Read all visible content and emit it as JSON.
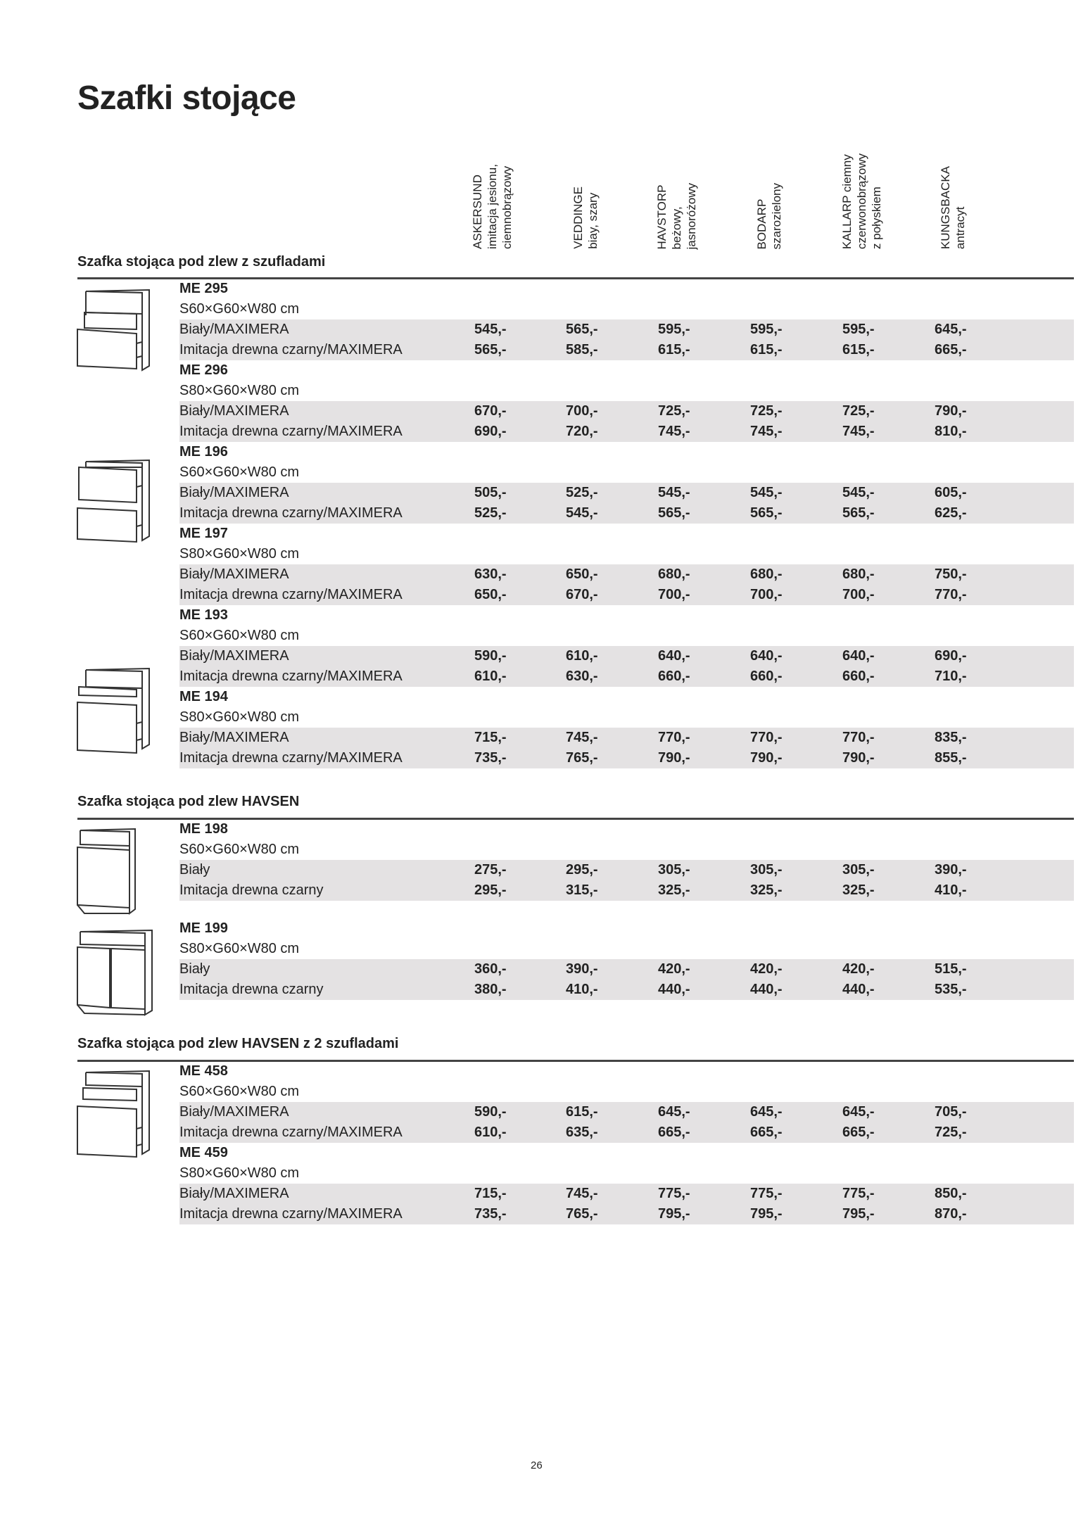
{
  "title": "Szafki stojące",
  "columns": [
    {
      "name": "ASKERSUND",
      "desc": "imitacja jesionu,\nciemnobrązowy"
    },
    {
      "name": "VEDDINGE",
      "desc": "biay, szary"
    },
    {
      "name": "HAVSTORP",
      "desc": "beżowy,\njasnoróżowy"
    },
    {
      "name": "BODARP",
      "desc": "szarozielony"
    },
    {
      "name": "KALLARP ciemny",
      "desc": "czerwonobrązowy\nz połyskiem"
    },
    {
      "name": "KUNGSBACKA",
      "desc": "antracyt"
    }
  ],
  "sections": [
    {
      "heading": "Szafka stojąca pod zlew z szufladami",
      "products": [
        {
          "code": "ME 295",
          "dims": "S60×G60×W80 cm",
          "rows": [
            {
              "label": "Biały/MAXIMERA",
              "prices": [
                "545,-",
                "565,-",
                "595,-",
                "595,-",
                "595,-",
                "645,-"
              ]
            },
            {
              "label": "Imitacja drewna czarny/MAXIMERA",
              "prices": [
                "565,-",
                "585,-",
                "615,-",
                "615,-",
                "615,-",
                "665,-"
              ]
            }
          ]
        },
        {
          "code": "ME 296",
          "dims": "S80×G60×W80 cm",
          "rows": [
            {
              "label": "Biały/MAXIMERA",
              "prices": [
                "670,-",
                "700,-",
                "725,-",
                "725,-",
                "725,-",
                "790,-"
              ]
            },
            {
              "label": "Imitacja drewna czarny/MAXIMERA",
              "prices": [
                "690,-",
                "720,-",
                "745,-",
                "745,-",
                "745,-",
                "810,-"
              ]
            }
          ]
        },
        {
          "code": "ME 196",
          "dims": "S60×G60×W80 cm",
          "rows": [
            {
              "label": "Biały/MAXIMERA",
              "prices": [
                "505,-",
                "525,-",
                "545,-",
                "545,-",
                "545,-",
                "605,-"
              ]
            },
            {
              "label": "Imitacja drewna czarny/MAXIMERA",
              "prices": [
                "525,-",
                "545,-",
                "565,-",
                "565,-",
                "565,-",
                "625,-"
              ]
            }
          ]
        },
        {
          "code": "ME 197",
          "dims": "S80×G60×W80 cm",
          "rows": [
            {
              "label": "Biały/MAXIMERA",
              "prices": [
                "630,-",
                "650,-",
                "680,-",
                "680,-",
                "680,-",
                "750,-"
              ]
            },
            {
              "label": "Imitacja drewna czarny/MAXIMERA",
              "prices": [
                "650,-",
                "670,-",
                "700,-",
                "700,-",
                "700,-",
                "770,-"
              ]
            }
          ]
        },
        {
          "code": "ME 193",
          "dims": "S60×G60×W80 cm",
          "rows": [
            {
              "label": "Biały/MAXIMERA",
              "prices": [
                "590,-",
                "610,-",
                "640,-",
                "640,-",
                "640,-",
                "690,-"
              ]
            },
            {
              "label": "Imitacja drewna czarny/MAXIMERA",
              "prices": [
                "610,-",
                "630,-",
                "660,-",
                "660,-",
                "660,-",
                "710,-"
              ]
            }
          ]
        },
        {
          "code": "ME 194",
          "dims": "S80×G60×W80 cm",
          "rows": [
            {
              "label": "Biały/MAXIMERA",
              "prices": [
                "715,-",
                "745,-",
                "770,-",
                "770,-",
                "770,-",
                "835,-"
              ]
            },
            {
              "label": "Imitacja drewna czarny/MAXIMERA",
              "prices": [
                "735,-",
                "765,-",
                "790,-",
                "790,-",
                "790,-",
                "855,-"
              ]
            }
          ]
        }
      ]
    },
    {
      "heading": "Szafka stojąca pod zlew HAVSEN",
      "products": [
        {
          "code": "ME 198",
          "dims": "S60×G60×W80 cm",
          "rows": [
            {
              "label": "Biały",
              "prices": [
                "275,-",
                "295,-",
                "305,-",
                "305,-",
                "305,-",
                "390,-"
              ]
            },
            {
              "label": "Imitacja drewna czarny",
              "prices": [
                "295,-",
                "315,-",
                "325,-",
                "325,-",
                "325,-",
                "410,-"
              ]
            }
          ]
        },
        {
          "code": "ME 199",
          "dims": "S80×G60×W80 cm",
          "rows": [
            {
              "label": "Biały",
              "prices": [
                "360,-",
                "390,-",
                "420,-",
                "420,-",
                "420,-",
                "515,-"
              ]
            },
            {
              "label": "Imitacja drewna czarny",
              "prices": [
                "380,-",
                "410,-",
                "440,-",
                "440,-",
                "440,-",
                "535,-"
              ]
            }
          ]
        }
      ]
    },
    {
      "heading": "Szafka stojąca pod zlew HAVSEN z 2 szufladami",
      "products": [
        {
          "code": "ME 458",
          "dims": "S60×G60×W80 cm",
          "rows": [
            {
              "label": "Biały/MAXIMERA",
              "prices": [
                "590,-",
                "615,-",
                "645,-",
                "645,-",
                "645,-",
                "705,-"
              ]
            },
            {
              "label": "Imitacja drewna czarny/MAXIMERA",
              "prices": [
                "610,-",
                "635,-",
                "665,-",
                "665,-",
                "665,-",
                "725,-"
              ]
            }
          ]
        },
        {
          "code": "ME 459",
          "dims": "S80×G60×W80 cm",
          "rows": [
            {
              "label": "Biały/MAXIMERA",
              "prices": [
                "715,-",
                "745,-",
                "775,-",
                "775,-",
                "775,-",
                "850,-"
              ]
            },
            {
              "label": "Imitacja drewna czarny/MAXIMERA",
              "prices": [
                "735,-",
                "765,-",
                "795,-",
                "795,-",
                "795,-",
                "870,-"
              ]
            }
          ]
        }
      ]
    }
  ],
  "page_number": "26",
  "colors": {
    "row_band": "#e4e2e3",
    "rule": "#444444"
  }
}
